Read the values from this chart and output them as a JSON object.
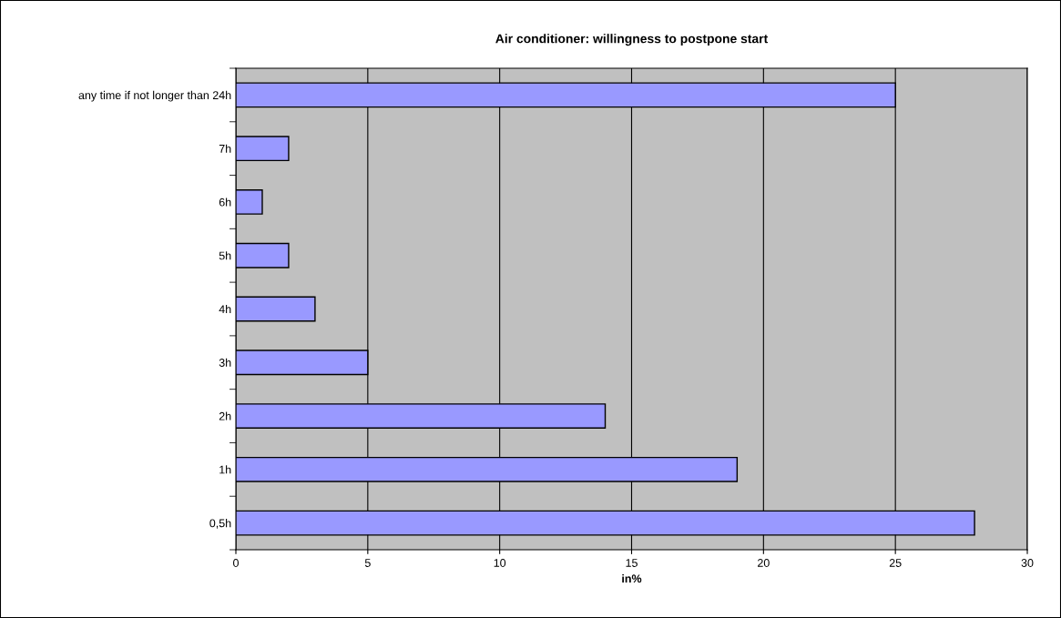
{
  "chart_data": {
    "type": "bar",
    "orientation": "horizontal",
    "title": "Air conditioner: willingness to postpone start",
    "xlabel": "in%",
    "categories": [
      "any time if not longer than 24h",
      "7h",
      "6h",
      "5h",
      "4h",
      "3h",
      "2h",
      "1h",
      "0,5h"
    ],
    "values": [
      25,
      2,
      1,
      2,
      3,
      5,
      14,
      19,
      28
    ],
    "color": "#9999ff",
    "xlim": [
      0,
      30
    ],
    "xticks": [
      0,
      5,
      10,
      15,
      20,
      25,
      30
    ],
    "grid": "x",
    "legend": false
  }
}
